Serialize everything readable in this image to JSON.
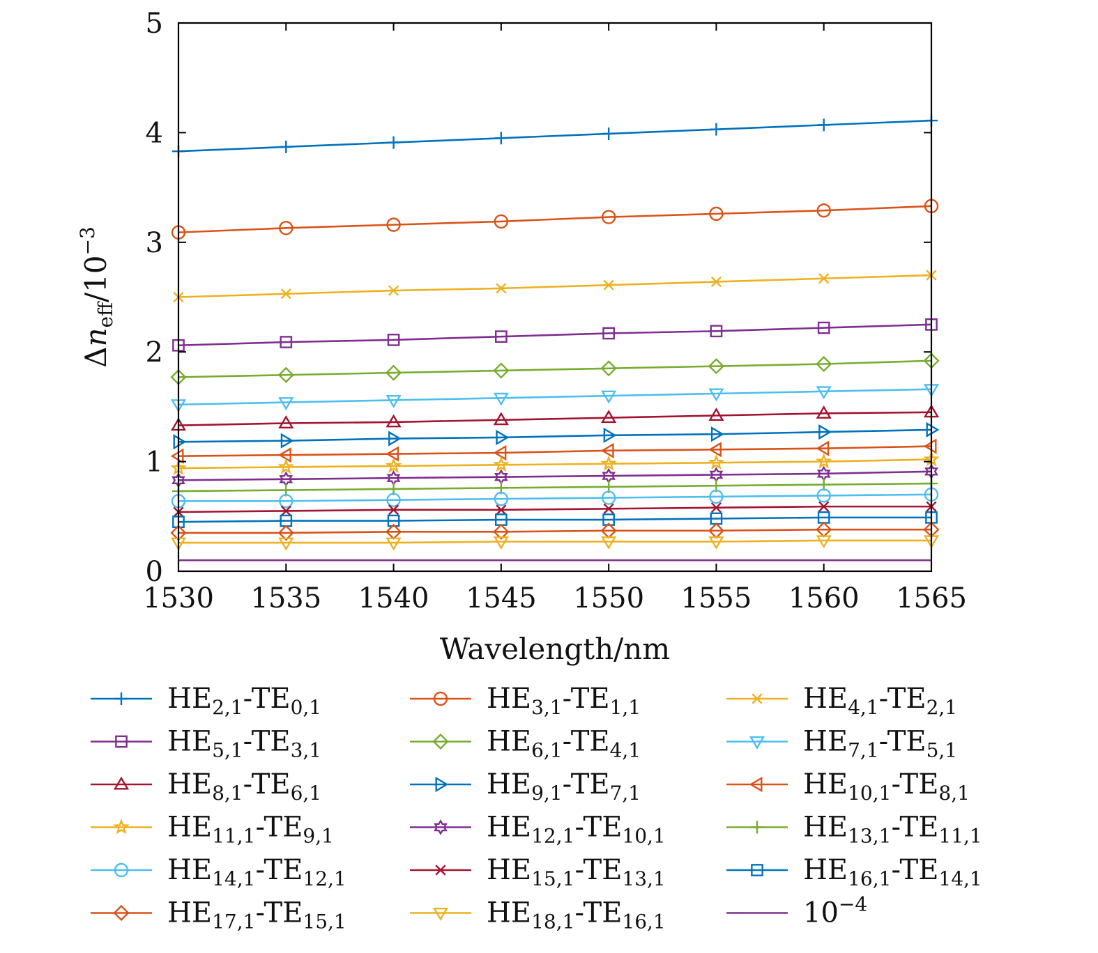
{
  "chart_data": {
    "type": "line",
    "title": "",
    "xlabel": "Wavelength/nm",
    "ylabel": "Δn_eff/10^-3",
    "ylabel_parts": {
      "delta": "Δ",
      "n": "n",
      "sub": "eff",
      "rest": "/10",
      "sup": "−3"
    },
    "xlim": [
      1530,
      1565
    ],
    "ylim": [
      0,
      5
    ],
    "x": [
      1530,
      1535,
      1540,
      1545,
      1550,
      1555,
      1560,
      1565
    ],
    "xticks": [
      "1530",
      "1535",
      "1540",
      "1545",
      "1550",
      "1555",
      "1560",
      "1565"
    ],
    "yticks": [
      "0",
      "1",
      "2",
      "3",
      "4",
      "5"
    ],
    "grid": false,
    "legend_position": "bottom",
    "series": [
      {
        "name": "HE2,1-TE0,1",
        "label": {
          "a": "HE",
          "as": "2,1",
          "b": "-TE",
          "bs": "0,1"
        },
        "color": "#0072BD",
        "marker": "plus",
        "values": [
          3.83,
          3.87,
          3.91,
          3.95,
          3.99,
          4.03,
          4.07,
          4.11
        ]
      },
      {
        "name": "HE3,1-TE1,1",
        "label": {
          "a": "HE",
          "as": "3,1",
          "b": "-TE",
          "bs": "1,1"
        },
        "color": "#D95319",
        "marker": "circle",
        "values": [
          3.09,
          3.13,
          3.16,
          3.19,
          3.23,
          3.26,
          3.29,
          3.33
        ]
      },
      {
        "name": "HE4,1-TE2,1",
        "label": {
          "a": "HE",
          "as": "4,1",
          "b": "-TE",
          "bs": "2,1"
        },
        "color": "#EDB120",
        "marker": "x",
        "values": [
          2.5,
          2.53,
          2.56,
          2.58,
          2.61,
          2.64,
          2.67,
          2.7
        ]
      },
      {
        "name": "HE5,1-TE3,1",
        "label": {
          "a": "HE",
          "as": "5,1",
          "b": "-TE",
          "bs": "3,1"
        },
        "color": "#7E2F8E",
        "marker": "square",
        "values": [
          2.06,
          2.09,
          2.11,
          2.14,
          2.17,
          2.19,
          2.22,
          2.25
        ]
      },
      {
        "name": "HE6,1-TE4,1",
        "label": {
          "a": "HE",
          "as": "6,1",
          "b": "-TE",
          "bs": "4,1"
        },
        "color": "#77AC30",
        "marker": "diamond",
        "values": [
          1.77,
          1.79,
          1.81,
          1.83,
          1.85,
          1.87,
          1.89,
          1.92
        ]
      },
      {
        "name": "HE7,1-TE5,1",
        "label": {
          "a": "HE",
          "as": "7,1",
          "b": "-TE",
          "bs": "5,1"
        },
        "color": "#4DBEEE",
        "marker": "triangle-down",
        "values": [
          1.52,
          1.54,
          1.56,
          1.58,
          1.6,
          1.62,
          1.64,
          1.66
        ]
      },
      {
        "name": "HE8,1-TE6,1",
        "label": {
          "a": "HE",
          "as": "8,1",
          "b": "-TE",
          "bs": "6,1"
        },
        "color": "#A2142F",
        "marker": "triangle-up",
        "values": [
          1.33,
          1.35,
          1.36,
          1.38,
          1.4,
          1.42,
          1.44,
          1.45
        ]
      },
      {
        "name": "HE9,1-TE7,1",
        "label": {
          "a": "HE",
          "as": "9,1",
          "b": "-TE",
          "bs": "7,1"
        },
        "color": "#0072BD",
        "marker": "triangle-right",
        "values": [
          1.18,
          1.19,
          1.21,
          1.22,
          1.24,
          1.25,
          1.27,
          1.29
        ]
      },
      {
        "name": "HE10,1-TE8,1",
        "label": {
          "a": "HE",
          "as": "10,1",
          "b": "-TE",
          "bs": "8,1"
        },
        "color": "#D95319",
        "marker": "triangle-left",
        "values": [
          1.05,
          1.06,
          1.07,
          1.08,
          1.1,
          1.11,
          1.12,
          1.14
        ]
      },
      {
        "name": "HE11,1-TE9,1",
        "label": {
          "a": "HE",
          "as": "11,1",
          "b": "-TE",
          "bs": "9,1"
        },
        "color": "#EDB120",
        "marker": "star",
        "values": [
          0.94,
          0.95,
          0.96,
          0.97,
          0.98,
          0.99,
          1.0,
          1.02
        ]
      },
      {
        "name": "HE12,1-TE10,1",
        "label": {
          "a": "HE",
          "as": "12,1",
          "b": "-TE",
          "bs": "10,1"
        },
        "color": "#7E2F8E",
        "marker": "hexagram",
        "values": [
          0.83,
          0.84,
          0.85,
          0.86,
          0.87,
          0.88,
          0.89,
          0.91
        ]
      },
      {
        "name": "HE13,1-TE11,1",
        "label": {
          "a": "HE",
          "as": "13,1",
          "b": "-TE",
          "bs": "11,1"
        },
        "color": "#77AC30",
        "marker": "vline",
        "values": [
          0.73,
          0.74,
          0.75,
          0.76,
          0.77,
          0.78,
          0.79,
          0.8
        ]
      },
      {
        "name": "HE14,1-TE12,1",
        "label": {
          "a": "HE",
          "as": "14,1",
          "b": "-TE",
          "bs": "12,1"
        },
        "color": "#4DBEEE",
        "marker": "circle",
        "values": [
          0.64,
          0.64,
          0.65,
          0.66,
          0.67,
          0.68,
          0.69,
          0.7
        ]
      },
      {
        "name": "HE15,1-TE13,1",
        "label": {
          "a": "HE",
          "as": "15,1",
          "b": "-TE",
          "bs": "13,1"
        },
        "color": "#A2142F",
        "marker": "x",
        "values": [
          0.54,
          0.55,
          0.56,
          0.56,
          0.57,
          0.58,
          0.59,
          0.59
        ]
      },
      {
        "name": "HE16,1-TE14,1",
        "label": {
          "a": "HE",
          "as": "16,1",
          "b": "-TE",
          "bs": "14,1"
        },
        "color": "#0072BD",
        "marker": "square",
        "values": [
          0.45,
          0.46,
          0.46,
          0.47,
          0.47,
          0.48,
          0.49,
          0.49
        ]
      },
      {
        "name": "HE17,1-TE15,1",
        "label": {
          "a": "HE",
          "as": "17,1",
          "b": "-TE",
          "bs": "15,1"
        },
        "color": "#D95319",
        "marker": "diamond",
        "values": [
          0.35,
          0.35,
          0.36,
          0.36,
          0.37,
          0.37,
          0.38,
          0.38
        ]
      },
      {
        "name": "HE18,1-TE16,1",
        "label": {
          "a": "HE",
          "as": "18,1",
          "b": "-TE",
          "bs": "16,1"
        },
        "color": "#EDB120",
        "marker": "triangle-down",
        "values": [
          0.26,
          0.26,
          0.26,
          0.27,
          0.27,
          0.27,
          0.28,
          0.28
        ]
      },
      {
        "name": "10^-4",
        "label": {
          "a": "10",
          "sup": "−4"
        },
        "color": "#7E2F8E",
        "marker": "none",
        "values": [
          0.1,
          0.1,
          0.1,
          0.1,
          0.1,
          0.1,
          0.1,
          0.1
        ]
      }
    ]
  }
}
